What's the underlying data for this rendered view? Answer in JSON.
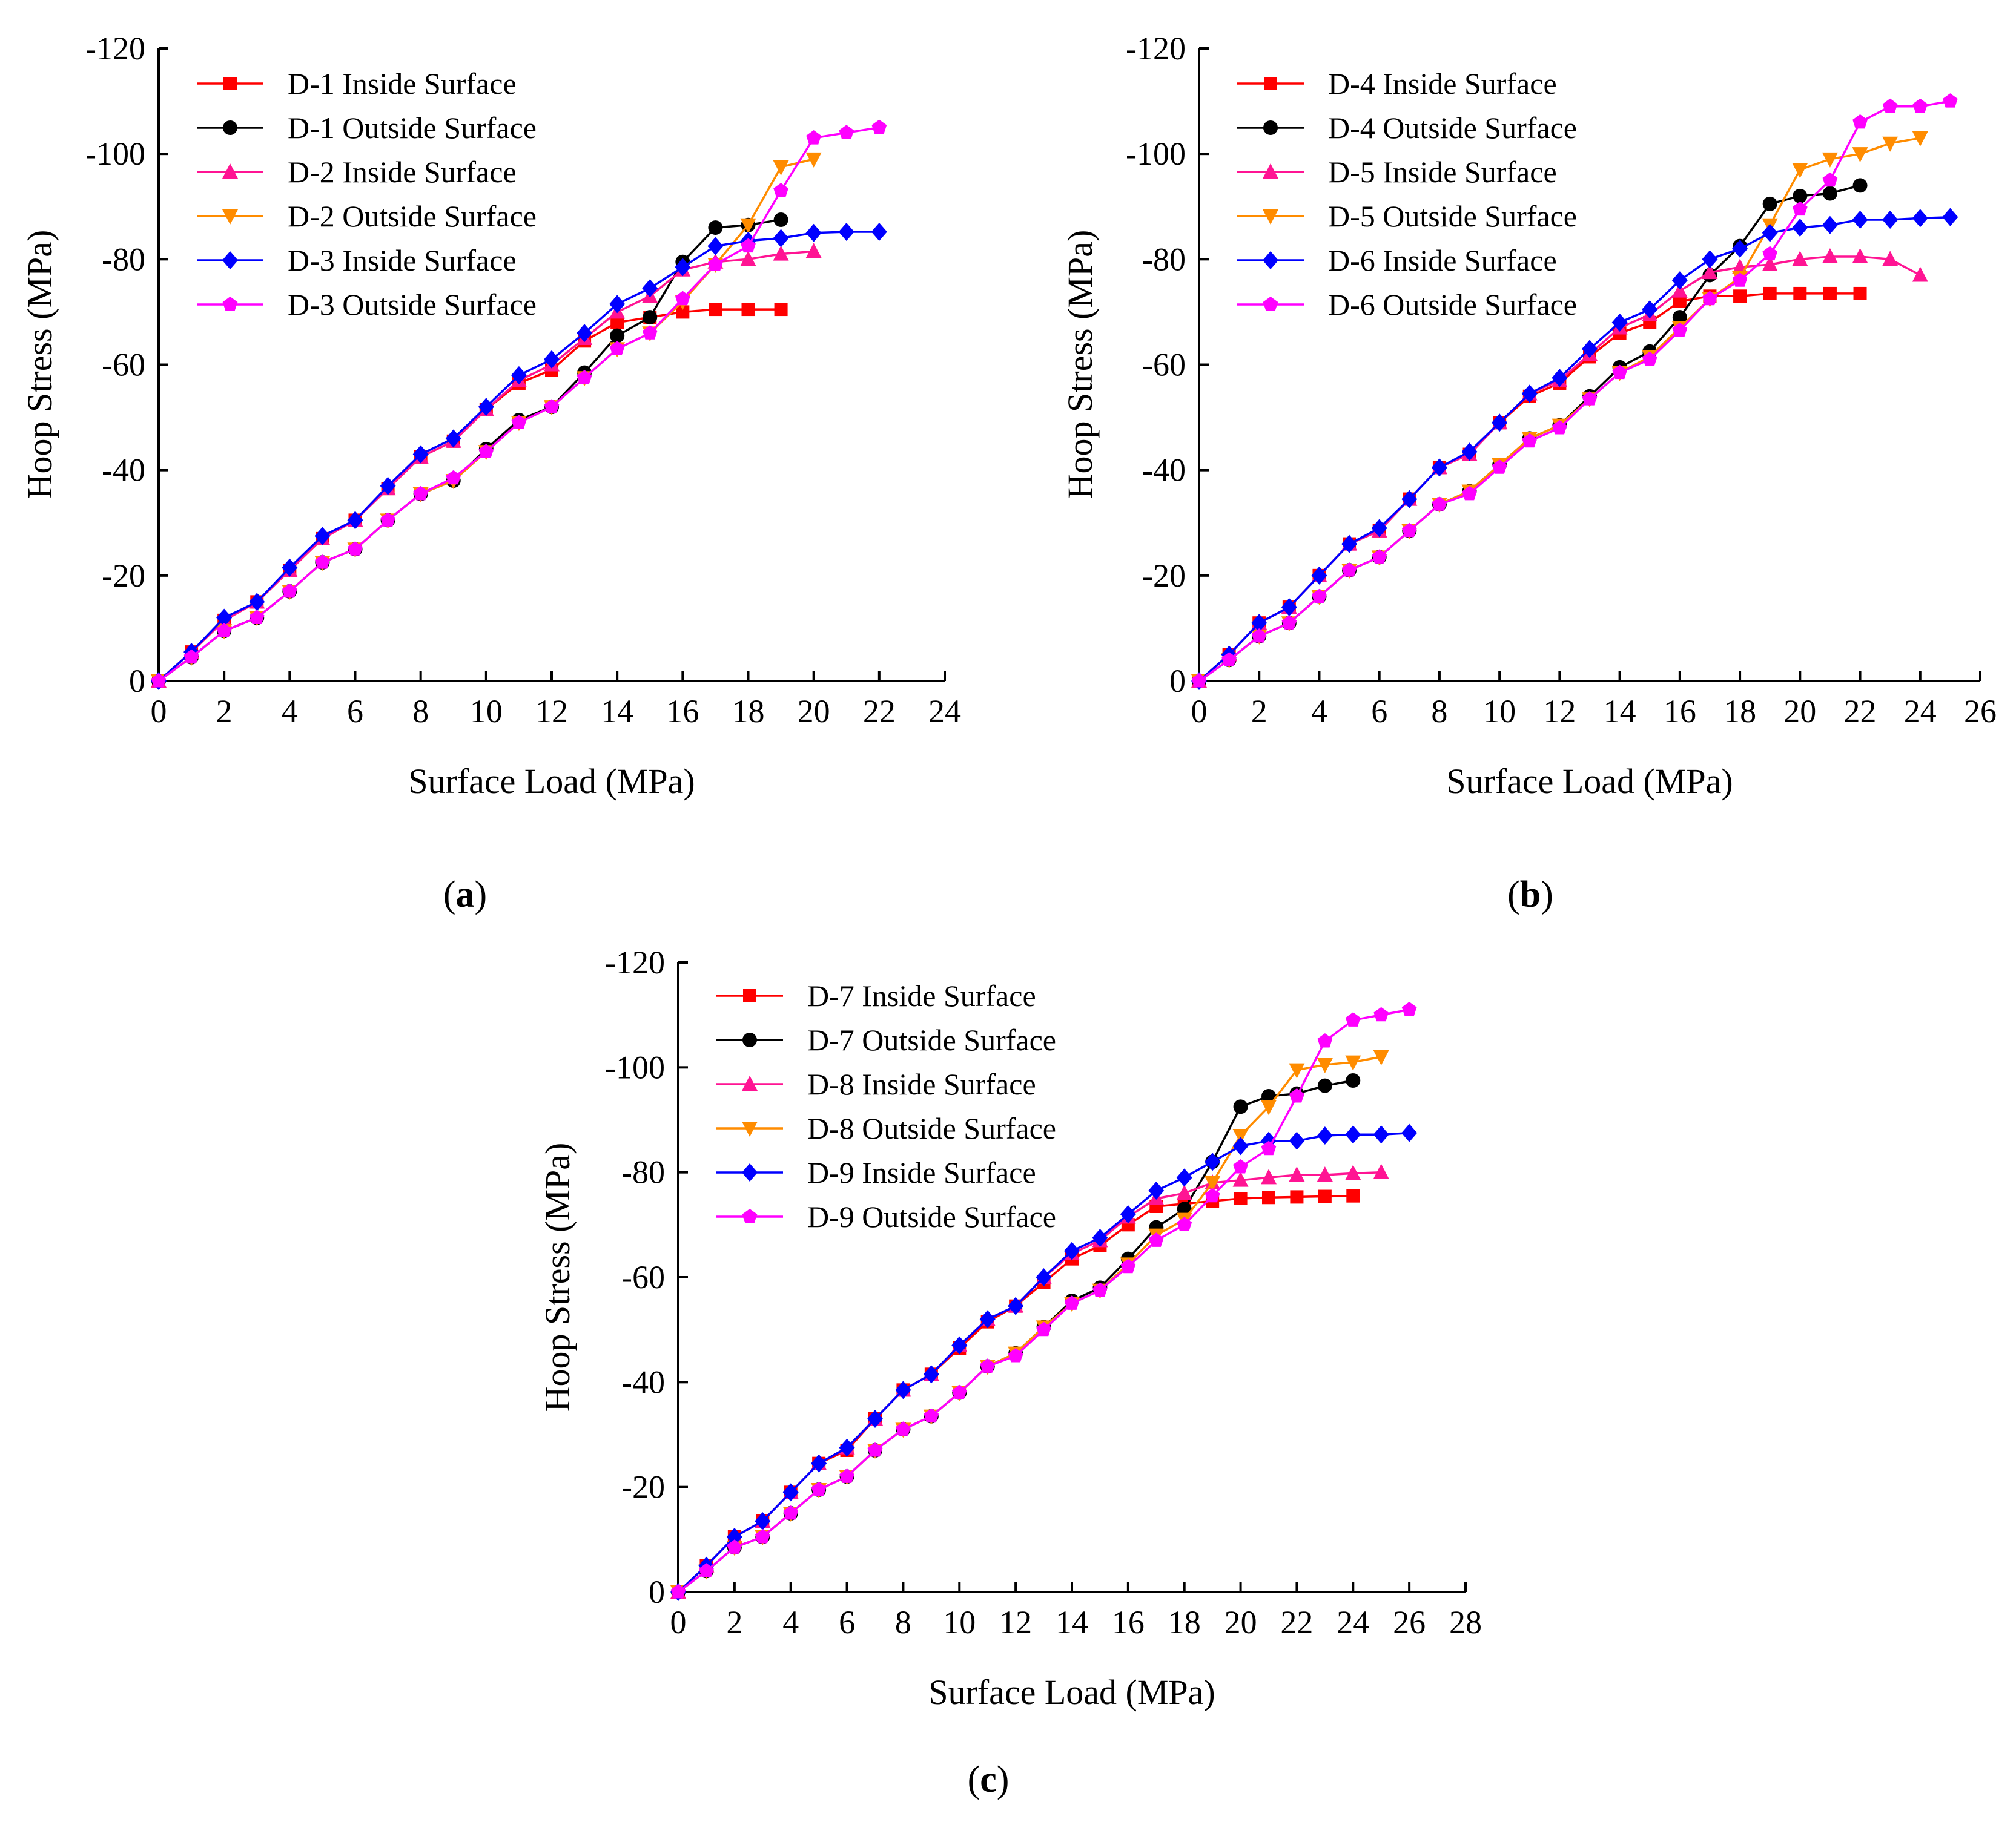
{
  "figure": {
    "captions": [
      {
        "open": "(",
        "letter": "a",
        "close": ")"
      },
      {
        "open": "(",
        "letter": "b",
        "close": ")"
      },
      {
        "open": "(",
        "letter": "c",
        "close": ")"
      }
    ]
  },
  "chart_data": [
    {
      "type": "line",
      "xlabel": "Surface Load (MPa)",
      "ylabel": "Hoop Stress (MPa)",
      "xlim": [
        0,
        24
      ],
      "ylim": [
        0,
        -120
      ],
      "xticks": [
        0,
        2,
        4,
        6,
        8,
        10,
        12,
        14,
        16,
        18,
        20,
        22,
        24
      ],
      "yticks": [
        0,
        -20,
        -40,
        -60,
        -80,
        -100,
        -120
      ],
      "grid": false,
      "legend_position": "top-left",
      "series": [
        {
          "name": "D-1 Inside Surface",
          "color": "#ff0000",
          "marker": "square",
          "x": [
            0,
            1,
            2,
            3,
            4,
            5,
            6,
            7,
            8,
            9,
            10,
            11,
            12,
            13,
            14,
            15,
            16,
            17,
            18,
            19
          ],
          "y": [
            0,
            -5.5,
            -11.5,
            -15,
            -21,
            -27,
            -30.5,
            -36.5,
            -42.5,
            -45.5,
            -51.5,
            -56.5,
            -59,
            -64.5,
            -68,
            -69,
            -70,
            -70.5,
            -70.5,
            -70.5
          ]
        },
        {
          "name": "D-1 Outside Surface",
          "color": "#000000",
          "marker": "circle",
          "x": [
            0,
            1,
            2,
            3,
            4,
            5,
            6,
            7,
            8,
            9,
            10,
            11,
            12,
            13,
            14,
            15,
            16,
            17,
            18,
            19
          ],
          "y": [
            0,
            -4.5,
            -9.5,
            -12,
            -17,
            -22.5,
            -25,
            -30.5,
            -35.5,
            -38,
            -44,
            -49.5,
            -52,
            -58.5,
            -65.5,
            -69,
            -79.5,
            -86,
            -86.5,
            -87.5
          ]
        },
        {
          "name": "D-2 Inside Surface",
          "color": "#ff1493",
          "marker": "triangle-up",
          "x": [
            0,
            1,
            2,
            3,
            4,
            5,
            6,
            7,
            8,
            9,
            10,
            11,
            12,
            13,
            14,
            15,
            16,
            17,
            18,
            19,
            20
          ],
          "y": [
            0,
            -5.5,
            -11.5,
            -15,
            -21,
            -27,
            -30.5,
            -36.5,
            -42.5,
            -45.5,
            -51.5,
            -57,
            -60,
            -65,
            -70,
            -73,
            -78,
            -79.5,
            -80,
            -81,
            -81.5
          ]
        },
        {
          "name": "D-2 Outside Surface",
          "color": "#ff8c00",
          "marker": "triangle-down",
          "x": [
            0,
            1,
            2,
            3,
            4,
            5,
            6,
            7,
            8,
            9,
            10,
            11,
            12,
            13,
            14,
            15,
            16,
            17,
            18,
            19,
            20
          ],
          "y": [
            0,
            -4.5,
            -9.5,
            -12,
            -17,
            -22.5,
            -25,
            -30.5,
            -35.5,
            -38,
            -43.5,
            -49,
            -52,
            -57.5,
            -63,
            -66,
            -72,
            -79,
            -86.5,
            -97.5,
            -99
          ]
        },
        {
          "name": "D-3 Inside Surface",
          "color": "#0000ff",
          "marker": "diamond",
          "x": [
            0,
            1,
            2,
            3,
            4,
            5,
            6,
            7,
            8,
            9,
            10,
            11,
            12,
            13,
            14,
            15,
            16,
            17,
            18,
            19,
            20,
            21,
            22
          ],
          "y": [
            0,
            -5.5,
            -12,
            -15,
            -21.5,
            -27.5,
            -30.5,
            -37,
            -43,
            -46,
            -52,
            -58,
            -61,
            -66,
            -71.5,
            -74.5,
            -78.5,
            -82.5,
            -83.5,
            -84,
            -85,
            -85.2,
            -85.2
          ]
        },
        {
          "name": "D-3 Outside Surface",
          "color": "#ff00ff",
          "marker": "pentagon",
          "x": [
            0,
            1,
            2,
            3,
            4,
            5,
            6,
            7,
            8,
            9,
            10,
            11,
            12,
            13,
            14,
            15,
            16,
            17,
            18,
            19,
            20,
            21,
            22
          ],
          "y": [
            0,
            -4.5,
            -9.5,
            -12,
            -17,
            -22.5,
            -25,
            -30.5,
            -35.5,
            -38.5,
            -43.5,
            -49,
            -52,
            -57.5,
            -63,
            -66,
            -72.5,
            -79,
            -82.5,
            -93,
            -103,
            -104,
            -105
          ]
        }
      ]
    },
    {
      "type": "line",
      "xlabel": "Surface Load (MPa)",
      "ylabel": "Hoop Stress (MPa)",
      "xlim": [
        0,
        26
      ],
      "ylim": [
        0,
        -120
      ],
      "xticks": [
        0,
        2,
        4,
        6,
        8,
        10,
        12,
        14,
        16,
        18,
        20,
        22,
        24,
        26
      ],
      "yticks": [
        0,
        -20,
        -40,
        -60,
        -80,
        -100,
        -120
      ],
      "grid": false,
      "legend_position": "top-left",
      "series": [
        {
          "name": "D-4 Inside Surface",
          "color": "#ff0000",
          "marker": "square",
          "x": [
            0,
            1,
            2,
            3,
            4,
            5,
            6,
            7,
            8,
            9,
            10,
            11,
            12,
            13,
            14,
            15,
            16,
            17,
            18,
            19,
            20,
            21,
            22
          ],
          "y": [
            0,
            -5,
            -11,
            -14,
            -20,
            -26,
            -28.5,
            -34.5,
            -40.5,
            -43,
            -49,
            -54,
            -56.5,
            -61.5,
            -66,
            -68,
            -72,
            -73,
            -73,
            -73.5,
            -73.5,
            -73.5,
            -73.5
          ]
        },
        {
          "name": "D-4 Outside Surface",
          "color": "#000000",
          "marker": "circle",
          "x": [
            0,
            1,
            2,
            3,
            4,
            5,
            6,
            7,
            8,
            9,
            10,
            11,
            12,
            13,
            14,
            15,
            16,
            17,
            18,
            19,
            20,
            21,
            22
          ],
          "y": [
            0,
            -4,
            -8.5,
            -11,
            -16,
            -21,
            -23.5,
            -28.5,
            -33.5,
            -36,
            -41,
            -46,
            -48.5,
            -54,
            -59.5,
            -62.5,
            -69,
            -77,
            -82.5,
            -90.5,
            -92,
            -92.5,
            -94
          ]
        },
        {
          "name": "D-5 Inside Surface",
          "color": "#ff1493",
          "marker": "triangle-up",
          "x": [
            0,
            1,
            2,
            3,
            4,
            5,
            6,
            7,
            8,
            9,
            10,
            11,
            12,
            13,
            14,
            15,
            16,
            17,
            18,
            19,
            20,
            21,
            22,
            23,
            24
          ],
          "y": [
            0,
            -5,
            -11,
            -14,
            -20,
            -26,
            -28.5,
            -34.5,
            -40.5,
            -43,
            -49,
            -54.5,
            -57,
            -62,
            -67,
            -69.5,
            -74,
            -77.5,
            -78.5,
            -79,
            -80,
            -80.5,
            -80.5,
            -80,
            -77
          ]
        },
        {
          "name": "D-5 Outside Surface",
          "color": "#ff8c00",
          "marker": "triangle-down",
          "x": [
            0,
            1,
            2,
            3,
            4,
            5,
            6,
            7,
            8,
            9,
            10,
            11,
            12,
            13,
            14,
            15,
            16,
            17,
            18,
            19,
            20,
            21,
            22,
            23,
            24
          ],
          "y": [
            0,
            -4,
            -8.5,
            -11,
            -16,
            -21,
            -23.5,
            -28.5,
            -33.5,
            -36,
            -41,
            -46,
            -48.5,
            -53.5,
            -58.5,
            -61.5,
            -67,
            -72.5,
            -76.5,
            -86.5,
            -97,
            -99,
            -100,
            -102,
            -103
          ]
        },
        {
          "name": "D-6 Inside Surface",
          "color": "#0000ff",
          "marker": "diamond",
          "x": [
            0,
            1,
            2,
            3,
            4,
            5,
            6,
            7,
            8,
            9,
            10,
            11,
            12,
            13,
            14,
            15,
            16,
            17,
            18,
            19,
            20,
            21,
            22,
            23,
            24,
            25
          ],
          "y": [
            0,
            -5,
            -11,
            -14,
            -20,
            -26,
            -29,
            -34.5,
            -40.5,
            -43.5,
            -49,
            -54.5,
            -57.5,
            -63,
            -68,
            -70.5,
            -76,
            -80,
            -82,
            -85,
            -86,
            -86.5,
            -87.5,
            -87.5,
            -87.8,
            -88
          ]
        },
        {
          "name": "D-6 Outside Surface",
          "color": "#ff00ff",
          "marker": "pentagon",
          "x": [
            0,
            1,
            2,
            3,
            4,
            5,
            6,
            7,
            8,
            9,
            10,
            11,
            12,
            13,
            14,
            15,
            16,
            17,
            18,
            19,
            20,
            21,
            22,
            23,
            24,
            25
          ],
          "y": [
            0,
            -4,
            -8.5,
            -11,
            -16,
            -21,
            -23.5,
            -28.5,
            -33.5,
            -35.5,
            -40.5,
            -45.5,
            -48,
            -53.5,
            -58.5,
            -61,
            -66.5,
            -72.5,
            -76,
            -81,
            -89.5,
            -95,
            -106,
            -109,
            -109,
            -110
          ]
        }
      ]
    },
    {
      "type": "line",
      "xlabel": "Surface Load (MPa)",
      "ylabel": "Hoop Stress (MPa)",
      "xlim": [
        0,
        28
      ],
      "ylim": [
        0,
        -120
      ],
      "xticks": [
        0,
        2,
        4,
        6,
        8,
        10,
        12,
        14,
        16,
        18,
        20,
        22,
        24,
        26,
        28
      ],
      "yticks": [
        0,
        -20,
        -40,
        -60,
        -80,
        -100,
        -120
      ],
      "grid": false,
      "legend_position": "top-left",
      "series": [
        {
          "name": "D-7 Inside Surface",
          "color": "#ff0000",
          "marker": "square",
          "x": [
            0,
            1,
            2,
            3,
            4,
            5,
            6,
            7,
            8,
            9,
            10,
            11,
            12,
            13,
            14,
            15,
            16,
            17,
            18,
            19,
            20,
            21,
            22,
            23,
            24
          ],
          "y": [
            0,
            -5,
            -10.5,
            -13.5,
            -19,
            -24.5,
            -27,
            -33,
            -38.5,
            -41.5,
            -46.5,
            -51.5,
            -54.5,
            -59,
            -63.5,
            -66,
            -70,
            -73.5,
            -74,
            -74.5,
            -75,
            -75.2,
            -75.3,
            -75.4,
            -75.5
          ]
        },
        {
          "name": "D-7 Outside Surface",
          "color": "#000000",
          "marker": "circle",
          "x": [
            0,
            1,
            2,
            3,
            4,
            5,
            6,
            7,
            8,
            9,
            10,
            11,
            12,
            13,
            14,
            15,
            16,
            17,
            18,
            19,
            20,
            21,
            22,
            23,
            24
          ],
          "y": [
            0,
            -4,
            -8.5,
            -10.5,
            -15,
            -19.5,
            -22,
            -27,
            -31,
            -33.5,
            -38,
            -43,
            -45.5,
            -50.5,
            -55.5,
            -58,
            -63.5,
            -69.5,
            -73,
            -82,
            -92.5,
            -94.5,
            -95,
            -96.5,
            -97.5
          ]
        },
        {
          "name": "D-8 Inside Surface",
          "color": "#ff1493",
          "marker": "triangle-up",
          "x": [
            0,
            1,
            2,
            3,
            4,
            5,
            6,
            7,
            8,
            9,
            10,
            11,
            12,
            13,
            14,
            15,
            16,
            17,
            18,
            19,
            20,
            21,
            22,
            23,
            24,
            25
          ],
          "y": [
            0,
            -5,
            -10.5,
            -13.5,
            -19,
            -24.5,
            -27.5,
            -33,
            -38.5,
            -41.5,
            -47,
            -52,
            -54.5,
            -60,
            -64.5,
            -67,
            -71.5,
            -75,
            -76,
            -78,
            -78.5,
            -79,
            -79.5,
            -79.5,
            -79.8,
            -80
          ]
        },
        {
          "name": "D-8 Outside Surface",
          "color": "#ff8c00",
          "marker": "triangle-down",
          "x": [
            0,
            1,
            2,
            3,
            4,
            5,
            6,
            7,
            8,
            9,
            10,
            11,
            12,
            13,
            14,
            15,
            16,
            17,
            18,
            19,
            20,
            21,
            22,
            23,
            24,
            25
          ],
          "y": [
            0,
            -4,
            -8.5,
            -10.5,
            -15,
            -19.5,
            -22,
            -27,
            -31,
            -33.5,
            -38,
            -43,
            -45.5,
            -50.5,
            -55,
            -57.5,
            -62.5,
            -68,
            -71,
            -78,
            -87,
            -92.5,
            -99.5,
            -100.5,
            -101,
            -102
          ]
        },
        {
          "name": "D-9 Inside Surface",
          "color": "#0000ff",
          "marker": "diamond",
          "x": [
            0,
            1,
            2,
            3,
            4,
            5,
            6,
            7,
            8,
            9,
            10,
            11,
            12,
            13,
            14,
            15,
            16,
            17,
            18,
            19,
            20,
            21,
            22,
            23,
            24,
            25,
            26
          ],
          "y": [
            0,
            -5,
            -10.5,
            -13.5,
            -19,
            -24.5,
            -27.5,
            -33,
            -38.5,
            -41.5,
            -47,
            -52,
            -54.5,
            -60,
            -65,
            -67.5,
            -72,
            -76.5,
            -79,
            -82,
            -85,
            -86,
            -86,
            -87,
            -87.2,
            -87.2,
            -87.5
          ]
        },
        {
          "name": "D-9 Outside Surface",
          "color": "#ff00ff",
          "marker": "pentagon",
          "x": [
            0,
            1,
            2,
            3,
            4,
            5,
            6,
            7,
            8,
            9,
            10,
            11,
            12,
            13,
            14,
            15,
            16,
            17,
            18,
            19,
            20,
            21,
            22,
            23,
            24,
            25,
            26
          ],
          "y": [
            0,
            -4,
            -8.5,
            -10.5,
            -15,
            -19.5,
            -22,
            -27,
            -31,
            -33.5,
            -38,
            -43,
            -45,
            -50,
            -55,
            -57.5,
            -62,
            -67,
            -70,
            -75.5,
            -81,
            -84.5,
            -94.5,
            -105,
            -109,
            -110,
            -111
          ]
        }
      ]
    }
  ]
}
